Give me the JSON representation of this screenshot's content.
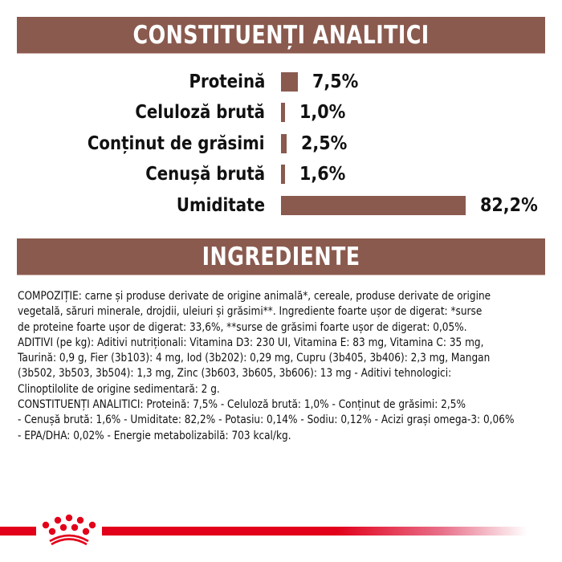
{
  "sections": {
    "analytic_title": "CONSTITUENȚI ANALITICI",
    "ingredients_title": "INGREDIENTE"
  },
  "chart_data": {
    "type": "bar",
    "orientation": "horizontal",
    "title": "CONSTITUENȚI ANALITICI",
    "categories": [
      "Proteină",
      "Celuloză brută",
      "Conținut de grăsimi",
      "Cenușă brută",
      "Umiditate"
    ],
    "values": [
      7.5,
      1.0,
      2.5,
      1.6,
      82.2
    ],
    "value_labels": [
      "7,5%",
      "1,0%",
      "2,5%",
      "1,6%",
      "82,2%"
    ],
    "unit": "%",
    "bar_color": "#8a5a4f",
    "grid": false,
    "legend": null,
    "xlabel": "",
    "ylabel": ""
  },
  "ingredients": {
    "lines": [
      "COMPOZIȚIE: carne și produse derivate de origine animală*, cereale, produse derivate de origine",
      "vegetală, săruri minerale, drojdii, uleiuri și grăsimi**. Ingrediente foarte ușor de digerat: *surse",
      "de proteine foarte ușor de digerat: 33,6%, **surse de grăsimi foarte ușor de digerat: 0,05%.",
      "ADITIVI (pe kg): Aditivi nutriționali: Vitamina D3: 230 UI, Vitamina E: 83 mg, Vitamina C: 35 mg,",
      "Taurină: 0,9 g, Fier (3b103): 4 mg, Iod (3b202): 0,29 mg, Cupru (3b405, 3b406): 2,3 mg, Mangan",
      "(3b502, 3b503, 3b504): 1,3 mg, Zinc (3b603, 3b605, 3b606): 13 mg - Aditivi tehnologici:",
      "Clinoptilolite de origine sedimentară: 2 g.",
      "CONSTITUENȚI ANALITICI: Proteină: 7,5% - Celuloză brută: 1,0% - Conținut de grăsimi: 2,5%",
      "- Cenușă brută: 1,6% - Umiditate: 82,2% - Potasiu: 0,14% - Sodiu: 0,12% - Acizi grași omega-3: 0,06%",
      "- EPA/DHA: 0,02% - Energie metabolizabilă: 703 kcal/kg."
    ]
  },
  "footer": {
    "logo": "crown-icon",
    "accent_color": "#e2001a"
  }
}
